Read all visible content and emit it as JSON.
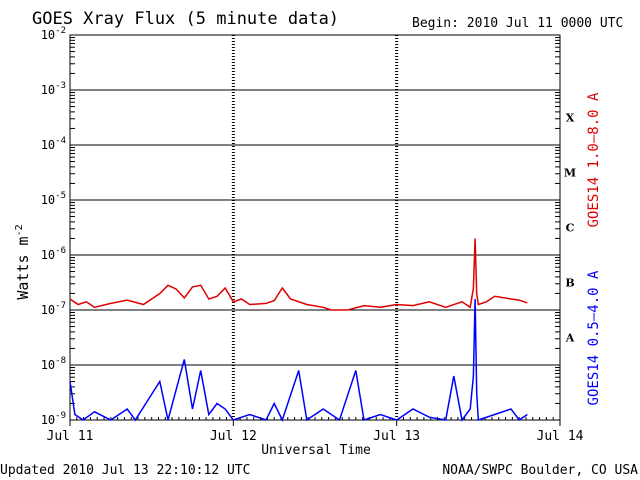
{
  "chart_data": {
    "type": "line",
    "title": "GOES Xray Flux (5 minute data)",
    "begin_label": "Begin:  2010 Jul 11 0000 UTC",
    "xlabel": "Universal Time",
    "ylabel": "Watts m",
    "ylabel_sup": "-2",
    "x_ticks": [
      "Jul 11",
      "Jul 12",
      "Jul 13",
      "Jul 14"
    ],
    "xlim_days": [
      0,
      3
    ],
    "y_scale": "log",
    "ylim_exp": [
      -9,
      -2
    ],
    "y_ticks": [
      {
        "base": "10",
        "exp": "-2"
      },
      {
        "base": "10",
        "exp": "-3"
      },
      {
        "base": "10",
        "exp": "-4"
      },
      {
        "base": "10",
        "exp": "-5"
      },
      {
        "base": "10",
        "exp": "-6"
      },
      {
        "base": "10",
        "exp": "-7"
      },
      {
        "base": "10",
        "exp": "-8"
      },
      {
        "base": "10",
        "exp": "-9"
      }
    ],
    "flare_classes": [
      {
        "label": "X",
        "exp": -4
      },
      {
        "label": "M",
        "exp": -5
      },
      {
        "label": "C",
        "exp": -6
      },
      {
        "label": "B",
        "exp": -7
      },
      {
        "label": "A",
        "exp": -8
      }
    ],
    "grid": true,
    "series": [
      {
        "name": "GOES14 1.0–8.0 A",
        "color": "#e00000",
        "points": [
          [
            0.0,
            -6.8
          ],
          [
            0.05,
            -6.9
          ],
          [
            0.1,
            -6.85
          ],
          [
            0.15,
            -6.95
          ],
          [
            0.25,
            -6.88
          ],
          [
            0.35,
            -6.82
          ],
          [
            0.45,
            -6.9
          ],
          [
            0.55,
            -6.7
          ],
          [
            0.6,
            -6.55
          ],
          [
            0.65,
            -6.62
          ],
          [
            0.7,
            -6.78
          ],
          [
            0.75,
            -6.58
          ],
          [
            0.8,
            -6.55
          ],
          [
            0.85,
            -6.8
          ],
          [
            0.9,
            -6.75
          ],
          [
            0.95,
            -6.6
          ],
          [
            1.0,
            -6.85
          ],
          [
            1.05,
            -6.8
          ],
          [
            1.1,
            -6.9
          ],
          [
            1.2,
            -6.88
          ],
          [
            1.25,
            -6.83
          ],
          [
            1.3,
            -6.6
          ],
          [
            1.35,
            -6.8
          ],
          [
            1.45,
            -6.9
          ],
          [
            1.55,
            -6.95
          ],
          [
            1.6,
            -7.0
          ],
          [
            1.7,
            -7.0
          ],
          [
            1.8,
            -6.92
          ],
          [
            1.9,
            -6.95
          ],
          [
            2.0,
            -6.9
          ],
          [
            2.1,
            -6.92
          ],
          [
            2.2,
            -6.85
          ],
          [
            2.3,
            -6.95
          ],
          [
            2.4,
            -6.85
          ],
          [
            2.45,
            -6.95
          ],
          [
            2.47,
            -6.6
          ],
          [
            2.48,
            -5.7
          ],
          [
            2.49,
            -6.7
          ],
          [
            2.5,
            -6.9
          ],
          [
            2.55,
            -6.85
          ],
          [
            2.6,
            -6.75
          ],
          [
            2.7,
            -6.8
          ],
          [
            2.75,
            -6.82
          ],
          [
            2.8,
            -6.87
          ]
        ]
      },
      {
        "name": "GOES14 0.5–4.0 A",
        "color": "#0000ff",
        "points": [
          [
            0.0,
            -8.3
          ],
          [
            0.03,
            -8.9
          ],
          [
            0.08,
            -9.0
          ],
          [
            0.15,
            -8.85
          ],
          [
            0.25,
            -9.0
          ],
          [
            0.35,
            -8.8
          ],
          [
            0.4,
            -9.0
          ],
          [
            0.55,
            -8.3
          ],
          [
            0.6,
            -9.0
          ],
          [
            0.7,
            -7.9
          ],
          [
            0.75,
            -8.8
          ],
          [
            0.8,
            -8.1
          ],
          [
            0.85,
            -8.9
          ],
          [
            0.9,
            -8.7
          ],
          [
            0.95,
            -8.8
          ],
          [
            1.0,
            -9.0
          ],
          [
            1.1,
            -8.9
          ],
          [
            1.2,
            -9.0
          ],
          [
            1.25,
            -8.7
          ],
          [
            1.3,
            -9.0
          ],
          [
            1.4,
            -8.1
          ],
          [
            1.45,
            -9.0
          ],
          [
            1.55,
            -8.8
          ],
          [
            1.65,
            -9.0
          ],
          [
            1.75,
            -8.1
          ],
          [
            1.8,
            -9.0
          ],
          [
            1.9,
            -8.9
          ],
          [
            2.0,
            -9.0
          ],
          [
            2.1,
            -8.8
          ],
          [
            2.2,
            -8.95
          ],
          [
            2.3,
            -9.0
          ],
          [
            2.35,
            -8.2
          ],
          [
            2.4,
            -9.0
          ],
          [
            2.45,
            -8.8
          ],
          [
            2.47,
            -8.2
          ],
          [
            2.48,
            -6.8
          ],
          [
            2.49,
            -8.5
          ],
          [
            2.5,
            -9.0
          ],
          [
            2.6,
            -8.9
          ],
          [
            2.7,
            -8.8
          ],
          [
            2.75,
            -9.0
          ],
          [
            2.8,
            -8.9
          ]
        ]
      }
    ]
  },
  "footer": {
    "updated": "Updated 2010 Jul 13 22:10:12 UTC",
    "credit": "NOAA/SWPC Boulder, CO USA"
  }
}
